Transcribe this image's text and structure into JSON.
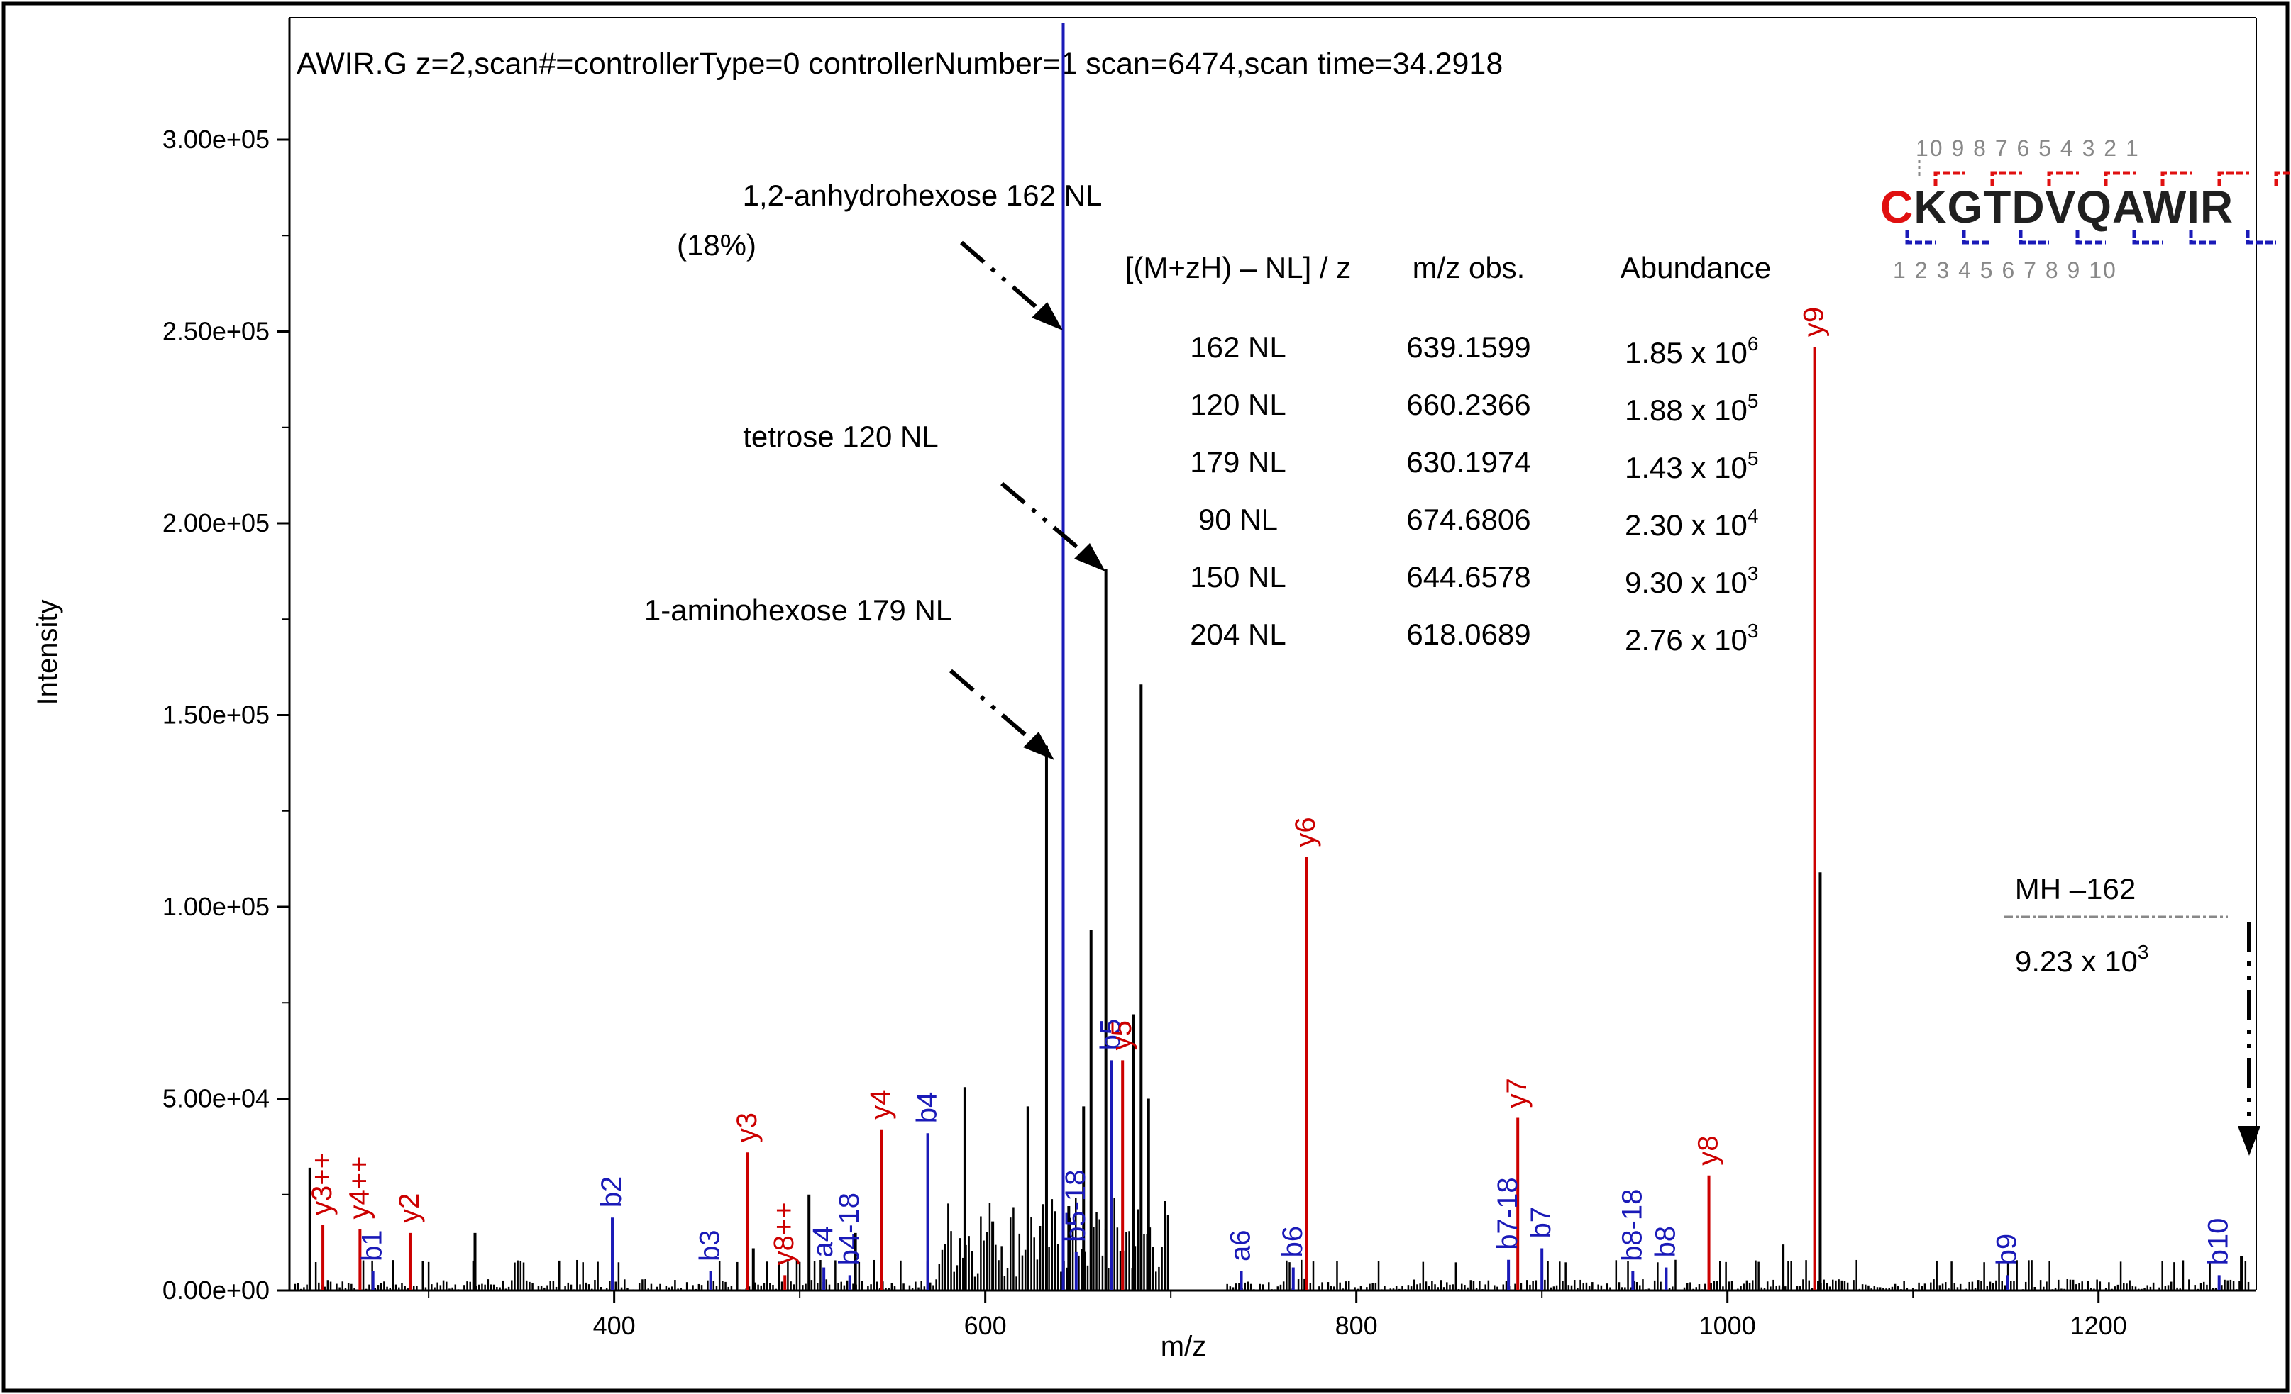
{
  "chart_data": {
    "type": "spectrum",
    "title": "AWIR.G z=2,scan#=controllerType=0 controllerNumber=1 scan=6474,scan time=34.2918",
    "xlabel": "m/z",
    "ylabel": "Intensity",
    "xlim": [
      225,
      1285
    ],
    "ylim": [
      0,
      330000
    ],
    "x_ticks": [
      {
        "v": 400,
        "label": "400"
      },
      {
        "v": 600,
        "label": "600"
      },
      {
        "v": 800,
        "label": "800"
      },
      {
        "v": 1000,
        "label": "1000"
      },
      {
        "v": 1200,
        "label": "1200"
      }
    ],
    "y_ticks": [
      {
        "v": 0,
        "label": "0.00e+00"
      },
      {
        "v": 50000,
        "label": "5.00e+04"
      },
      {
        "v": 100000,
        "label": "1.00e+05"
      },
      {
        "v": 150000,
        "label": "1.50e+05"
      },
      {
        "v": 200000,
        "label": "2.00e+05"
      },
      {
        "v": 250000,
        "label": "2.50e+05"
      },
      {
        "v": 300000,
        "label": "3.00e+05"
      }
    ],
    "colors": {
      "y_ion": "#cc0000",
      "b_ion": "#1a1ab8",
      "peak": "#000000"
    },
    "labeled_peaks": [
      {
        "label": "y3++",
        "mz": 243,
        "intensity": 17000,
        "ion": "y"
      },
      {
        "label": "y4++",
        "mz": 263,
        "intensity": 16000,
        "ion": "y"
      },
      {
        "label": "b1",
        "mz": 270,
        "intensity": 5000,
        "ion": "b"
      },
      {
        "label": "y2",
        "mz": 290,
        "intensity": 15000,
        "ion": "y"
      },
      {
        "label": "b2",
        "mz": 399,
        "intensity": 19000,
        "ion": "b"
      },
      {
        "label": "b3",
        "mz": 452,
        "intensity": 5000,
        "ion": "b"
      },
      {
        "label": "y3",
        "mz": 472,
        "intensity": 36000,
        "ion": "y"
      },
      {
        "label": "y8++",
        "mz": 492,
        "intensity": 4000,
        "ion": "y"
      },
      {
        "label": "a4",
        "mz": 513,
        "intensity": 6000,
        "ion": "b"
      },
      {
        "label": "b4-18",
        "mz": 527,
        "intensity": 4000,
        "ion": "b"
      },
      {
        "label": "y4",
        "mz": 544,
        "intensity": 42000,
        "ion": "y"
      },
      {
        "label": "b4",
        "mz": 569,
        "intensity": 41000,
        "ion": "b"
      },
      {
        "label": "b5-18",
        "mz": 649,
        "intensity": 10000,
        "ion": "b"
      },
      {
        "label": "b5",
        "mz": 668,
        "intensity": 60000,
        "ion": "b"
      },
      {
        "label": "y5",
        "mz": 674,
        "intensity": 60000,
        "ion": "y"
      },
      {
        "label": "a6",
        "mz": 738,
        "intensity": 5000,
        "ion": "b"
      },
      {
        "label": "b6",
        "mz": 766,
        "intensity": 6000,
        "ion": "b"
      },
      {
        "label": "y6",
        "mz": 773,
        "intensity": 113000,
        "ion": "y"
      },
      {
        "label": "b7-18",
        "mz": 882,
        "intensity": 8000,
        "ion": "b"
      },
      {
        "label": "y7",
        "mz": 887,
        "intensity": 45000,
        "ion": "y"
      },
      {
        "label": "b7",
        "mz": 900,
        "intensity": 11000,
        "ion": "b"
      },
      {
        "label": "b8-18",
        "mz": 949,
        "intensity": 5000,
        "ion": "b"
      },
      {
        "label": "b8",
        "mz": 967,
        "intensity": 6000,
        "ion": "b"
      },
      {
        "label": "y8",
        "mz": 990,
        "intensity": 30000,
        "ion": "y"
      },
      {
        "label": "y9",
        "mz": 1047,
        "intensity": 246000,
        "ion": "y"
      },
      {
        "label": "b9",
        "mz": 1151,
        "intensity": 4000,
        "ion": "b"
      },
      {
        "label": "b10",
        "mz": 1265,
        "intensity": 4000,
        "ion": "b"
      }
    ],
    "black_peaks": [
      {
        "mz": 236,
        "intensity": 32000
      },
      {
        "mz": 325,
        "intensity": 15000
      },
      {
        "mz": 475,
        "intensity": 11000
      },
      {
        "mz": 505,
        "intensity": 25000
      },
      {
        "mz": 530,
        "intensity": 15000
      },
      {
        "mz": 589,
        "intensity": 53000
      },
      {
        "mz": 604,
        "intensity": 18000
      },
      {
        "mz": 623,
        "intensity": 48000
      },
      {
        "mz": 633,
        "intensity": 142000
      },
      {
        "mz": 645,
        "intensity": 22000
      },
      {
        "mz": 653,
        "intensity": 48000
      },
      {
        "mz": 657,
        "intensity": 94000
      },
      {
        "mz": 665,
        "intensity": 188000
      },
      {
        "mz": 680,
        "intensity": 72000
      },
      {
        "mz": 684,
        "intensity": 158000
      },
      {
        "mz": 688,
        "intensity": 50000
      },
      {
        "mz": 1030,
        "intensity": 12000
      },
      {
        "mz": 1050,
        "intensity": 109000
      },
      {
        "mz": 1277,
        "intensity": 9000
      }
    ],
    "precursor_peak": {
      "mz": 642,
      "intensity": 330000
    },
    "annotations": {
      "anhydro": [
        "1,2-anhydrohexose  162 NL",
        "(18%)"
      ],
      "tetrose": "tetrose  120 NL",
      "aminohexose": "1-aminohexose   179 NL",
      "mh": "MH –162",
      "mh_val_mantissa": "9.23 x 10",
      "mh_val_exp": "3"
    },
    "nl_table": {
      "headers": [
        "[(M+zH) – NL] / z",
        "m/z obs.",
        "Abundance"
      ],
      "rows": [
        {
          "nl": "162 NL",
          "mz": "639.1599",
          "mant": "1.85 x 10",
          "exp": "6"
        },
        {
          "nl": "120 NL",
          "mz": "660.2366",
          "mant": "1.88 x 10",
          "exp": "5"
        },
        {
          "nl": "179 NL",
          "mz": "630.1974",
          "mant": "1.43 x 10",
          "exp": "5"
        },
        {
          "nl": "90 NL",
          "mz": "674.6806",
          "mant": "2.30 x 10",
          "exp": "4"
        },
        {
          "nl": "150 NL",
          "mz": "644.6578",
          "mant": "9.30 x 10",
          "exp": "3"
        },
        {
          "nl": "204 NL",
          "mz": "618.0689",
          "mant": "2.76 x 10",
          "exp": "3"
        }
      ]
    },
    "sequence": {
      "first": "C",
      "rest": "KGTDVQAWIR",
      "top_numbers": "10 9 8 7 6 5 4 3 2 1",
      "bottom_numbers": "1 2 3 4 5 6 7 8 9 10"
    }
  }
}
